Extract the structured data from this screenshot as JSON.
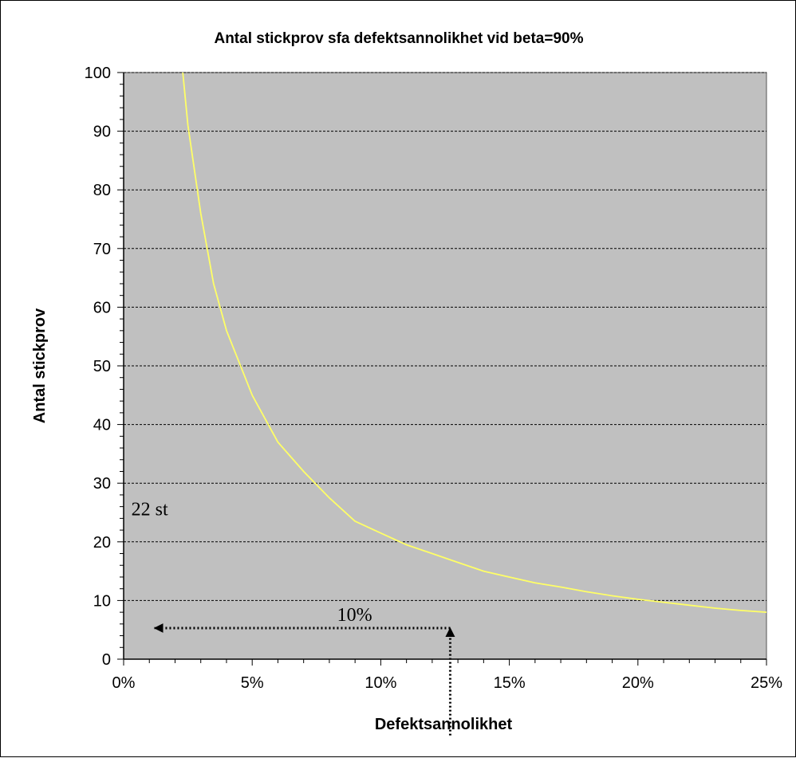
{
  "chart_data": {
    "type": "line",
    "title": "Antal stickprov sfa defektsannolikhet vid beta=90%",
    "xlabel": "Defektsannolikhet",
    "ylabel": "Antal stickprov",
    "xlim": [
      0,
      0.25
    ],
    "ylim": [
      0,
      100
    ],
    "x_ticks": [
      "0%",
      "5%",
      "10%",
      "15%",
      "20%",
      "25%"
    ],
    "y_ticks": [
      "0",
      "10",
      "20",
      "30",
      "40",
      "50",
      "60",
      "70",
      "80",
      "90",
      "100"
    ],
    "grid": "horizontal major gridlines",
    "plot_background": "#c0c0c0",
    "series": [
      {
        "color": "#ffff66",
        "x": [
          0.023,
          0.025,
          0.03,
          0.035,
          0.04,
          0.05,
          0.06,
          0.07,
          0.08,
          0.09,
          0.1,
          0.11,
          0.12,
          0.13,
          0.14,
          0.15,
          0.16,
          0.17,
          0.18,
          0.19,
          0.2,
          0.21,
          0.22,
          0.23,
          0.24,
          0.25
        ],
        "y": [
          100,
          91,
          76,
          64,
          56,
          45,
          37,
          32,
          27.5,
          23.5,
          21.5,
          19.5,
          18,
          16.5,
          15,
          14,
          13,
          12.3,
          11.5,
          10.8,
          10.2,
          9.7,
          9.2,
          8.7,
          8.3,
          8
        ]
      }
    ],
    "annotations": [
      {
        "text": "22 st",
        "x": 0.003,
        "y": 24.5
      },
      {
        "text": "10%",
        "x": 0.083,
        "y": 6.5
      }
    ],
    "arrows": [
      {
        "from": [
          0.127,
          5.3
        ],
        "to": [
          0.012,
          5.3
        ],
        "style": "dotted",
        "head": "end"
      },
      {
        "from": [
          0.127,
          -13
        ],
        "to": [
          0.127,
          5.3
        ],
        "style": "dotted",
        "head": "end"
      }
    ]
  }
}
